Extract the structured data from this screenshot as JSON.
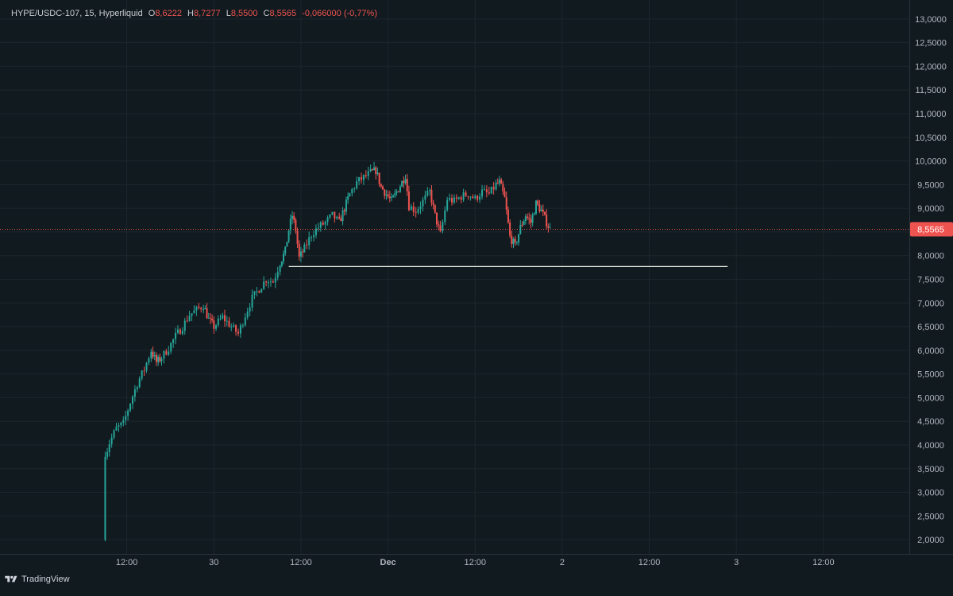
{
  "legend": {
    "symbol": "HYPE/USDC-107, 15, Hyperliquid",
    "open_key": "O",
    "open_val": "8,6222",
    "high_key": "H",
    "high_val": "8,7277",
    "low_key": "L",
    "low_val": "8,5500",
    "close_key": "C",
    "close_val": "8,5565",
    "change": "-0,066000 (-0,77%)"
  },
  "brand": {
    "name": "TradingView",
    "icon": "tradingview-logo-icon"
  },
  "colors": {
    "background": "#111a1f",
    "up": "#26a69a",
    "down": "#ef5350",
    "grid": "#1c262c",
    "axis_text": "#b2b5be",
    "last_price_line": "#ef5350",
    "support_line": "#e6e6dc"
  },
  "chart_data": {
    "type": "candlestick",
    "timeframe": "15",
    "ylim": [
      1.7,
      13.4
    ],
    "y_ticks": [
      "2,0000",
      "2,5000",
      "3,0000",
      "3,5000",
      "4,0000",
      "4,5000",
      "5,0000",
      "5,5000",
      "6,0000",
      "6,5000",
      "7,0000",
      "7,5000",
      "8,0000",
      "8,5000",
      "9,0000",
      "9,5000",
      "10,0000",
      "10,5000",
      "11,0000",
      "11,5000",
      "12,0000",
      "12,5000",
      "13,0000"
    ],
    "y_tick_values": [
      2,
      2.5,
      3,
      3.5,
      4,
      4.5,
      5,
      5.5,
      6,
      6.5,
      7,
      7.5,
      8,
      8.5,
      9,
      9.5,
      10,
      10.5,
      11,
      11.5,
      12,
      12.5,
      13
    ],
    "x_ticks": [
      {
        "label": "12:00",
        "t": 0.5
      },
      {
        "label": "30",
        "t": 1.0
      },
      {
        "label": "12:00",
        "t": 1.5
      },
      {
        "label": "Dec",
        "t": 2.0,
        "bold": true
      },
      {
        "label": "12:00",
        "t": 2.5
      },
      {
        "label": "2",
        "t": 3.0
      },
      {
        "label": "12:00",
        "t": 3.5
      },
      {
        "label": "3",
        "t": 4.0
      },
      {
        "label": "12:00",
        "t": 4.5
      }
    ],
    "price_path": [
      [
        0.37,
        2.0
      ],
      [
        0.376,
        3.75
      ],
      [
        0.4,
        4.05
      ],
      [
        0.44,
        4.35
      ],
      [
        0.48,
        4.45
      ],
      [
        0.52,
        4.9
      ],
      [
        0.56,
        5.3
      ],
      [
        0.6,
        5.6
      ],
      [
        0.64,
        6.0
      ],
      [
        0.67,
        5.75
      ],
      [
        0.7,
        5.85
      ],
      [
        0.74,
        6.05
      ],
      [
        0.78,
        6.3
      ],
      [
        0.82,
        6.5
      ],
      [
        0.86,
        6.75
      ],
      [
        0.9,
        6.85
      ],
      [
        0.94,
        6.95
      ],
      [
        0.97,
        6.65
      ],
      [
        1.0,
        6.5
      ],
      [
        1.05,
        6.7
      ],
      [
        1.1,
        6.5
      ],
      [
        1.14,
        6.35
      ],
      [
        1.18,
        6.75
      ],
      [
        1.22,
        7.1
      ],
      [
        1.26,
        7.3
      ],
      [
        1.3,
        7.5
      ],
      [
        1.34,
        7.45
      ],
      [
        1.38,
        7.85
      ],
      [
        1.41,
        8.1
      ],
      [
        1.43,
        8.55
      ],
      [
        1.45,
        8.85
      ],
      [
        1.47,
        8.55
      ],
      [
        1.49,
        7.95
      ],
      [
        1.52,
        8.15
      ],
      [
        1.56,
        8.45
      ],
      [
        1.6,
        8.6
      ],
      [
        1.64,
        8.7
      ],
      [
        1.68,
        8.85
      ],
      [
        1.72,
        8.7
      ],
      [
        1.75,
        9.0
      ],
      [
        1.78,
        9.3
      ],
      [
        1.82,
        9.55
      ],
      [
        1.86,
        9.65
      ],
      [
        1.9,
        9.75
      ],
      [
        1.93,
        9.8
      ],
      [
        1.96,
        9.45
      ],
      [
        1.99,
        9.3
      ],
      [
        2.02,
        9.15
      ],
      [
        2.05,
        9.35
      ],
      [
        2.08,
        9.55
      ],
      [
        2.1,
        9.7
      ],
      [
        2.12,
        9.05
      ],
      [
        2.16,
        8.95
      ],
      [
        2.2,
        9.15
      ],
      [
        2.24,
        9.35
      ],
      [
        2.27,
        8.85
      ],
      [
        2.3,
        8.45
      ],
      [
        2.34,
        9.2
      ],
      [
        2.38,
        9.15
      ],
      [
        2.42,
        9.25
      ],
      [
        2.46,
        9.3
      ],
      [
        2.5,
        9.2
      ],
      [
        2.54,
        9.35
      ],
      [
        2.58,
        9.3
      ],
      [
        2.62,
        9.5
      ],
      [
        2.64,
        9.55
      ],
      [
        2.67,
        9.2
      ],
      [
        2.7,
        8.4
      ],
      [
        2.73,
        8.2
      ],
      [
        2.76,
        8.6
      ],
      [
        2.79,
        8.85
      ],
      [
        2.82,
        8.7
      ],
      [
        2.85,
        9.1
      ],
      [
        2.88,
        8.95
      ],
      [
        2.91,
        8.7
      ],
      [
        2.93,
        8.5565
      ]
    ],
    "last_price": 8.5565,
    "last_price_label": "8,5565",
    "support_line": {
      "price": 7.77,
      "t_start": 1.43,
      "t_end": 3.95
    }
  }
}
